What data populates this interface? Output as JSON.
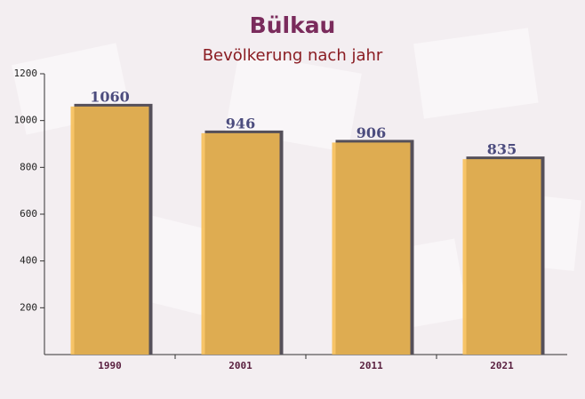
{
  "chart_data": {
    "type": "bar",
    "title": "Bülkau",
    "subtitle": "Bevölkerung nach jahr",
    "categories": [
      "1990",
      "2001",
      "2011",
      "2021"
    ],
    "values": [
      1060,
      946,
      906,
      835
    ],
    "color": "#f7bc50",
    "ylim": [
      0,
      1200
    ],
    "yticks": [
      200,
      400,
      600,
      800,
      1000,
      1200
    ]
  }
}
